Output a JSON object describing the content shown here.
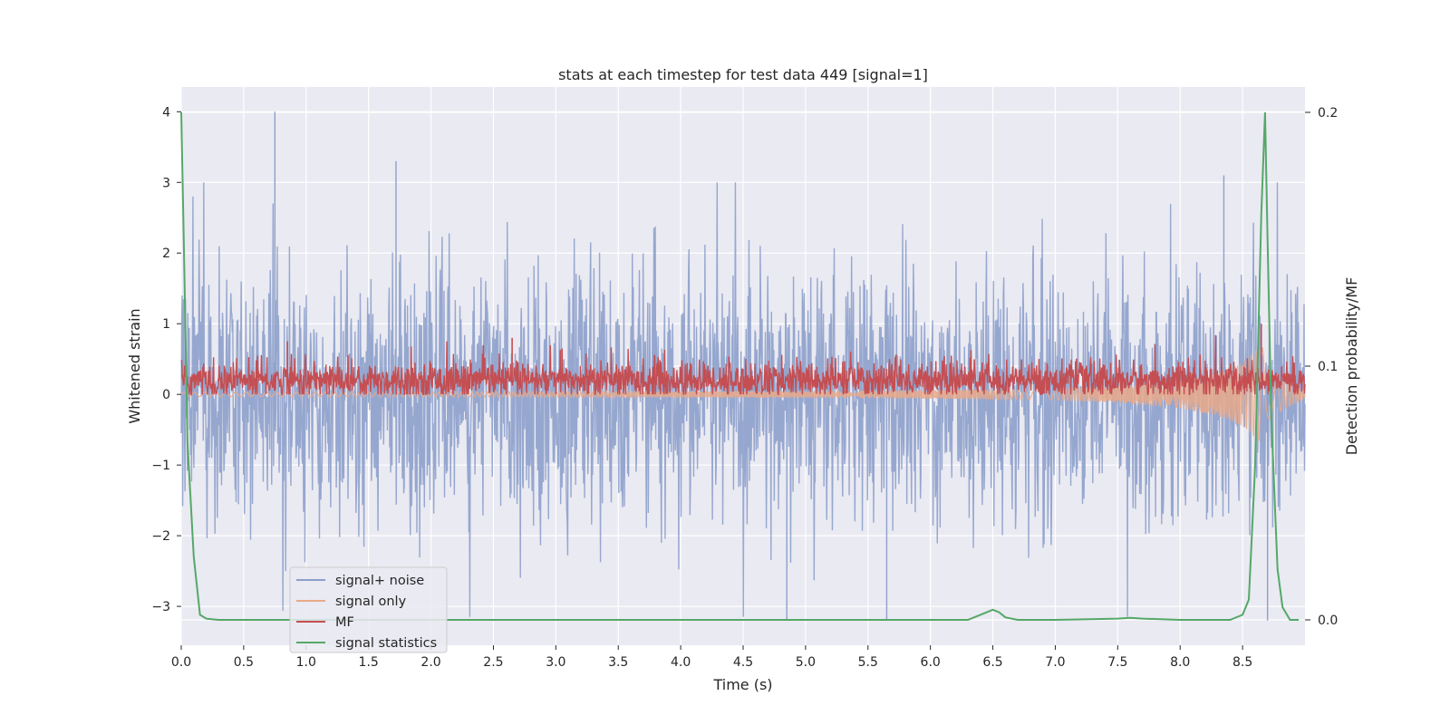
{
  "chart_data": {
    "type": "line",
    "title": "stats at each timestep for test data 449 [signal=1]",
    "xlabel": "Time (s)",
    "ylabel": "Whitened strain",
    "y2label": "Detection probability/MF",
    "xlim": [
      0.0,
      9.0
    ],
    "ylim": [
      -3.55,
      4.35
    ],
    "y2lim": [
      -0.01,
      0.21
    ],
    "x_ticks": [
      "0.0",
      "0.5",
      "1.0",
      "1.5",
      "2.0",
      "2.5",
      "3.0",
      "3.5",
      "4.0",
      "4.5",
      "5.0",
      "5.5",
      "6.0",
      "6.5",
      "7.0",
      "7.5",
      "8.0",
      "8.5"
    ],
    "x_tick_values": [
      0.0,
      0.5,
      1.0,
      1.5,
      2.0,
      2.5,
      3.0,
      3.5,
      4.0,
      4.5,
      5.0,
      5.5,
      6.0,
      6.5,
      7.0,
      7.5,
      8.0,
      8.5
    ],
    "y_ticks": [
      "−3",
      "−2",
      "−1",
      "0",
      "1",
      "2",
      "3",
      "4"
    ],
    "y_tick_values": [
      -3,
      -2,
      -1,
      0,
      1,
      2,
      3,
      4
    ],
    "y2_ticks": [
      "0.0",
      "0.1",
      "0.2"
    ],
    "y2_tick_values": [
      0.0,
      0.1,
      0.2
    ],
    "grid": true,
    "legend_position": "lower-left",
    "series": [
      {
        "name": "signal+ noise",
        "color": "#8da0cb",
        "description": "whitened strain, roughly Gaussian noise with std ~0.9 plus spikes",
        "notable_peaks": [
          [
            0.75,
            4.0
          ],
          [
            1.72,
            3.3
          ],
          [
            8.35,
            3.1
          ]
        ],
        "notable_troughs": [
          [
            4.85,
            -3.2
          ],
          [
            5.65,
            -3.2
          ],
          [
            8.7,
            -3.2
          ]
        ]
      },
      {
        "name": "signal only",
        "color": "#e9a98a",
        "description": "chirp signal growing in amplitude toward merger near 8.65 s",
        "envelope_points": [
          [
            0.0,
            0.03
          ],
          [
            4.0,
            0.04
          ],
          [
            6.0,
            0.06
          ],
          [
            7.0,
            0.08
          ],
          [
            7.5,
            0.12
          ],
          [
            8.0,
            0.2
          ],
          [
            8.3,
            0.3
          ],
          [
            8.5,
            0.45
          ],
          [
            8.65,
            0.7
          ],
          [
            8.75,
            0.3
          ],
          [
            9.0,
            0.05
          ]
        ]
      },
      {
        "name": "MF",
        "color": "#c44e52",
        "description": "matched-filter output around 0.2 with fluctuations up to ~0.85 and peak ~1.0 near merger",
        "baseline": 0.2,
        "notable_peaks": [
          [
            0.85,
            0.75
          ],
          [
            2.65,
            0.8
          ],
          [
            3.05,
            0.65
          ],
          [
            8.65,
            1.0
          ]
        ]
      },
      {
        "name": "signal statistics",
        "color": "#55a868",
        "axis": "secondary",
        "x": [
          0.0,
          0.02,
          0.05,
          0.1,
          0.15,
          0.2,
          0.3,
          0.5,
          1.0,
          2.0,
          3.0,
          4.0,
          5.0,
          6.0,
          6.3,
          6.4,
          6.5,
          6.55,
          6.6,
          6.7,
          7.0,
          7.5,
          7.6,
          7.7,
          8.0,
          8.4,
          8.5,
          8.55,
          8.6,
          8.65,
          8.68,
          8.7,
          8.73,
          8.78,
          8.82,
          8.88,
          8.95
        ],
        "values": [
          0.2,
          0.15,
          0.07,
          0.025,
          0.002,
          0.0005,
          0.0,
          0.0,
          0.0,
          0.0,
          0.0,
          0.0,
          0.0,
          0.0,
          0.0,
          0.002,
          0.004,
          0.003,
          0.001,
          0.0,
          0.0,
          0.0005,
          0.0008,
          0.0005,
          0.0,
          0.0,
          0.002,
          0.008,
          0.06,
          0.16,
          0.2,
          0.15,
          0.08,
          0.02,
          0.005,
          0.0,
          0.0
        ]
      }
    ]
  }
}
